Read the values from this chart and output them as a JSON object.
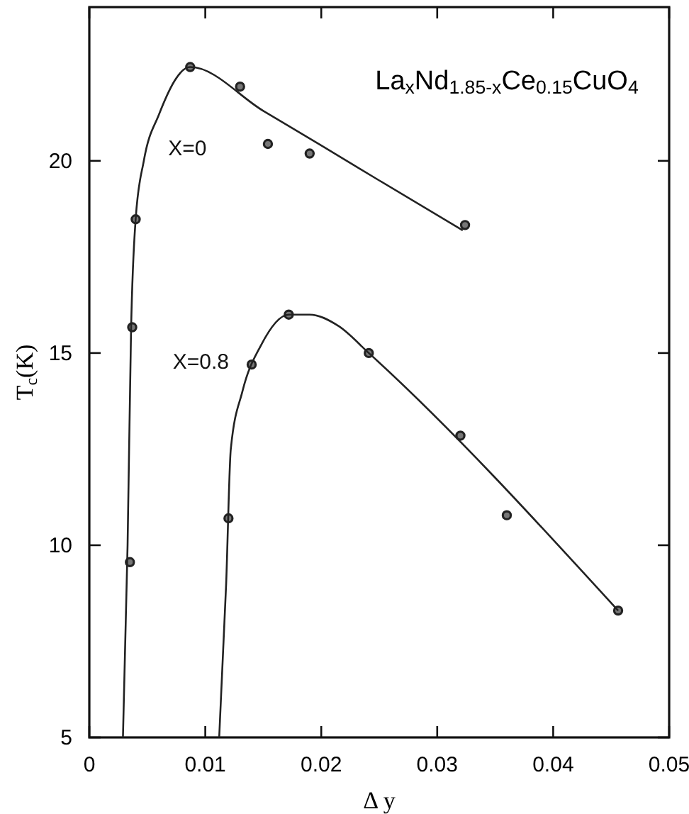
{
  "chart_data": {
    "type": "scatter",
    "title": "La$_{x}$Nd$_{1.85-x}$Ce$_{0.15}$CuO$_{4}$",
    "xlabel": "Δ y",
    "ylabel": "T$_{c}$(K)",
    "xlim": [
      0,
      0.05
    ],
    "xticks": [
      0,
      0.01,
      0.02,
      0.03,
      0.04,
      0.05
    ],
    "ylim": [
      5,
      24
    ],
    "yticks": [
      5,
      10,
      15,
      20
    ],
    "grid": false,
    "series": [
      {
        "name": "X=0",
        "marker": "circle",
        "color": "#222222",
        "x": [
          0.0035,
          0.0037,
          0.004,
          0.0087,
          0.013,
          0.0154,
          0.019,
          0.0324
        ],
        "values": [
          9.56,
          15.67,
          18.48,
          22.44,
          21.93,
          20.44,
          20.19,
          18.33
        ]
      },
      {
        "type": "line",
        "marker": "none",
        "line_style": "solid",
        "color": "#222222",
        "x": [
          0.0029,
          0.0033,
          0.0036,
          0.004,
          0.0047,
          0.006,
          0.0087,
          0.015,
          0.02,
          0.025,
          0.0322
        ],
        "values": [
          5,
          10,
          15.6,
          18.5,
          20,
          21.2,
          22.44,
          21.3,
          20.4,
          19.49,
          18.19
        ]
      },
      {
        "name": "X=0.8",
        "marker": "circle",
        "color": "#222222",
        "x": [
          0.012,
          0.014,
          0.0172,
          0.0241,
          0.032,
          0.036,
          0.0456
        ],
        "values": [
          10.7,
          14.7,
          16.0,
          15.0,
          12.85,
          10.78,
          8.3
        ]
      },
      {
        "type": "line",
        "marker": "none",
        "line_style": "solid",
        "color": "#222222",
        "x": [
          0.0112,
          0.0118,
          0.0122,
          0.0132,
          0.0148,
          0.0172,
          0.019,
          0.0215,
          0.0241,
          0.0456
        ],
        "values": [
          5,
          9,
          12.5,
          14,
          15.2,
          16.0,
          16.0,
          15.7,
          15.0,
          8.3
        ]
      }
    ]
  }
}
